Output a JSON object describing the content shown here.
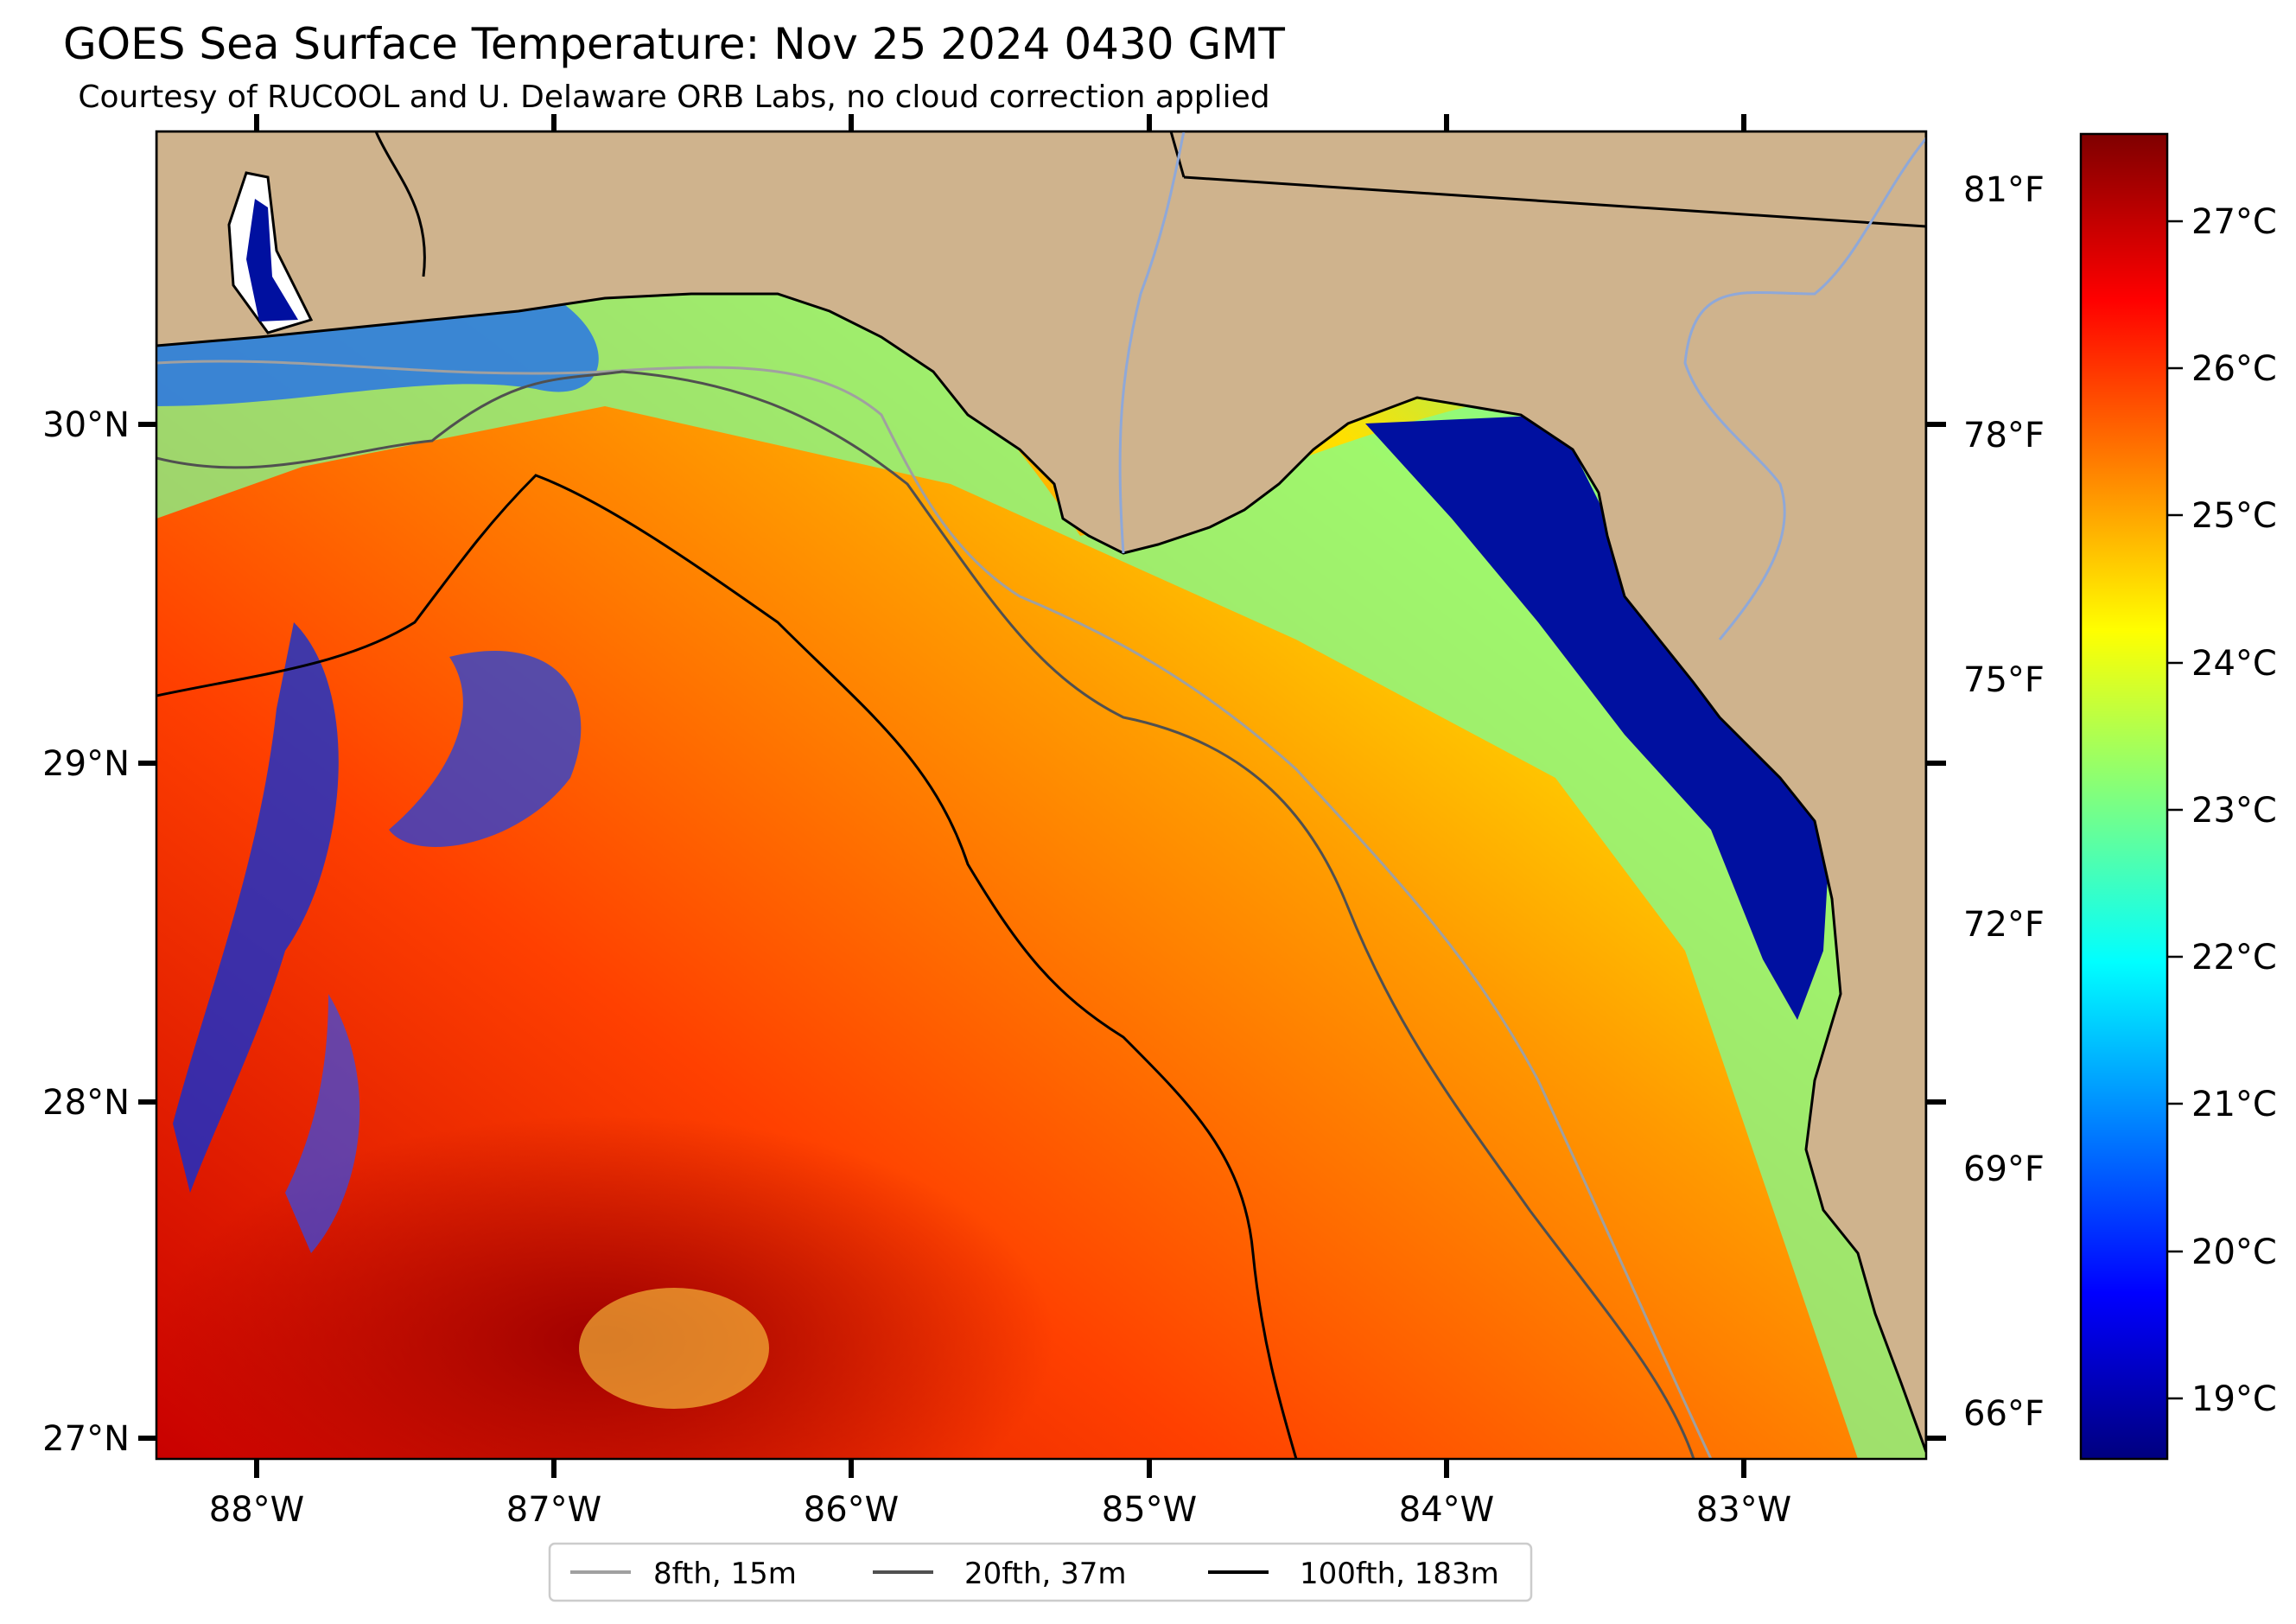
{
  "title": "GOES Sea Surface Temperature: Nov 25 2024 0430 GMT",
  "subtitle": "Courtesy of RUCOOL and U. Delaware ORB Labs, no cloud correction applied",
  "lon_ticks": [
    "88°W",
    "87°W",
    "86°W",
    "85°W",
    "84°W",
    "83°W"
  ],
  "lat_ticks": [
    "30°N",
    "29°N",
    "28°N",
    "27°N"
  ],
  "fahrenheit_ticks": [
    "81°F",
    "78°F",
    "75°F",
    "72°F",
    "69°F",
    "66°F"
  ],
  "celsius_ticks": [
    "27°C",
    "26°C",
    "25°C",
    "24°C",
    "23°C",
    "22°C",
    "21°C",
    "20°C",
    "19°C"
  ],
  "legend": [
    {
      "label": "8fth, 15m",
      "color": "#a0a0a0"
    },
    {
      "label": "20fth, 37m",
      "color": "#505050"
    },
    {
      "label": "100fth, 183m",
      "color": "#000000"
    }
  ],
  "colors": {
    "land": "#cfb38d",
    "state_border": "#000000",
    "rivers": "#8fa8d8"
  },
  "colorbar": {
    "min_c": 18.6,
    "max_c": 27.6,
    "colormap": "jet",
    "stops": [
      "#00007f",
      "#0000ff",
      "#007fff",
      "#00ffff",
      "#7fff7f",
      "#ffff00",
      "#ff7f00",
      "#ff0000",
      "#7f0000"
    ]
  }
}
